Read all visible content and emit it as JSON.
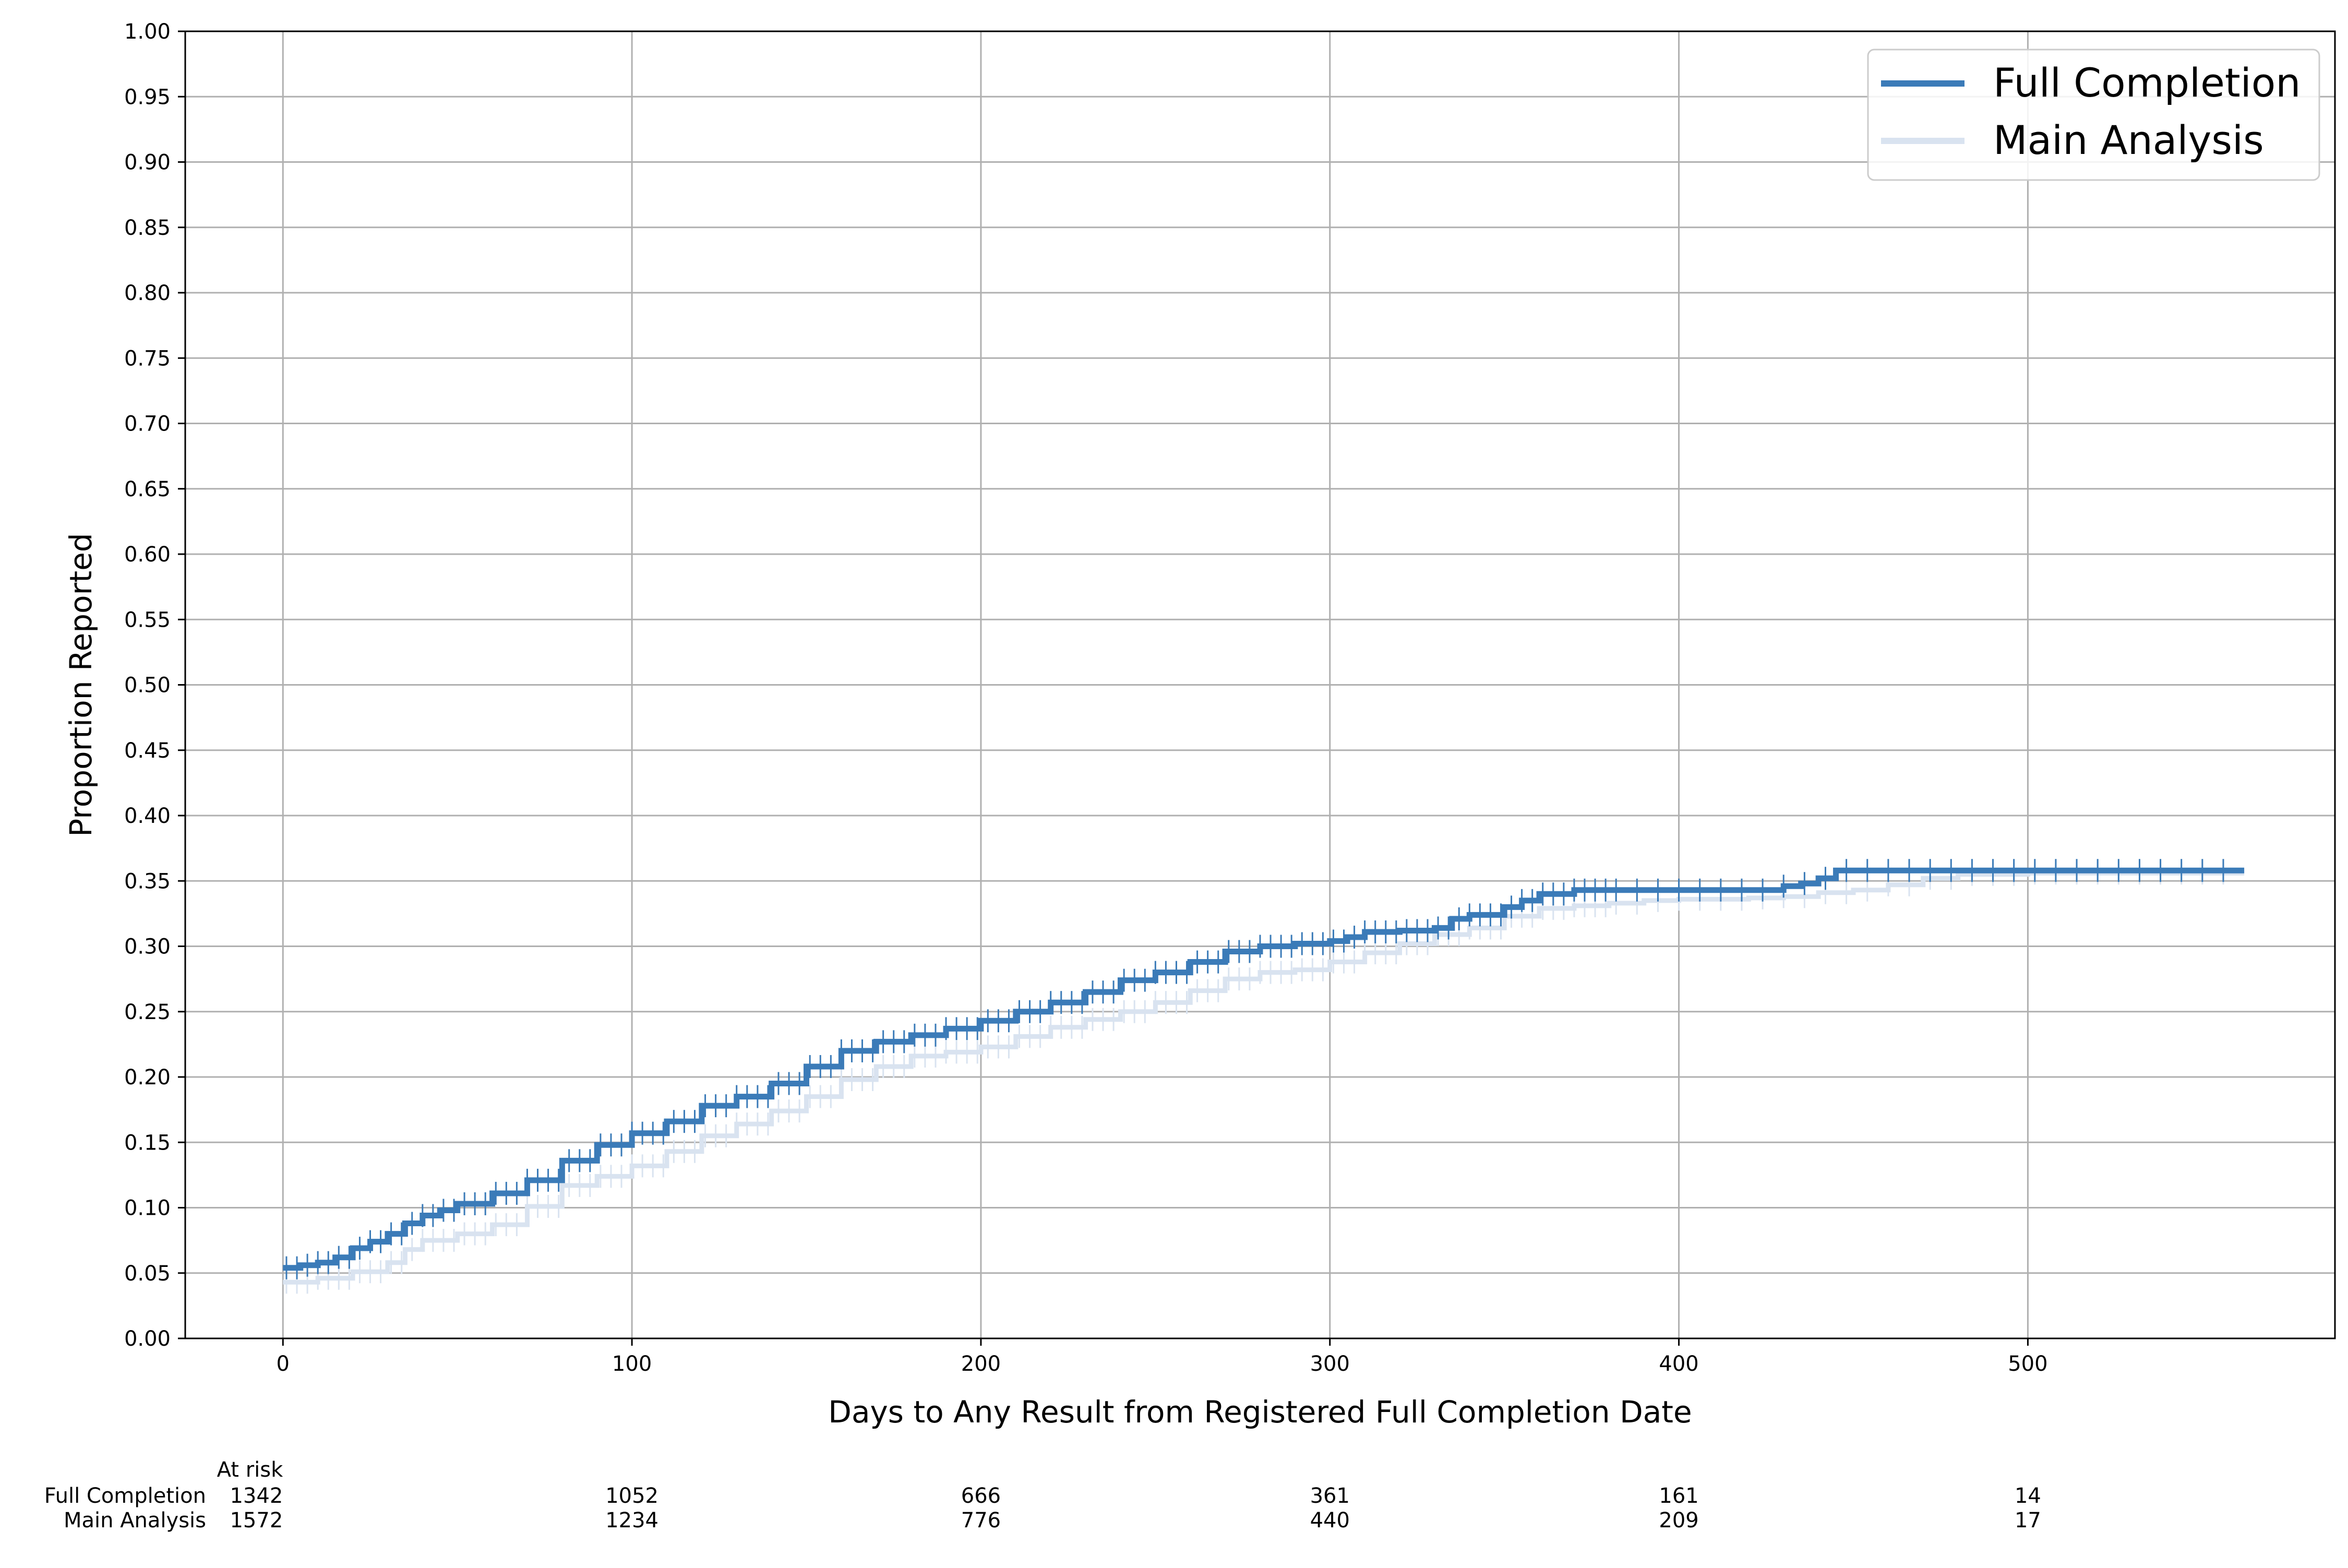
{
  "chart_data": {
    "type": "line",
    "title": "",
    "xlabel": "Days to Any Result from Registered Full Completion Date",
    "ylabel": "Proportion Reported",
    "xlim": [
      -28,
      588
    ],
    "ylim": [
      0.0,
      1.0
    ],
    "x_ticks": [
      0,
      100,
      200,
      300,
      400,
      500
    ],
    "x_tick_labels": [
      "0",
      "100",
      "200",
      "300",
      "400",
      "500"
    ],
    "y_ticks": [
      0.0,
      0.05,
      0.1,
      0.15,
      0.2,
      0.25,
      0.3,
      0.35,
      0.4,
      0.45,
      0.5,
      0.55,
      0.6,
      0.65,
      0.7,
      0.75,
      0.8,
      0.85,
      0.9,
      0.95,
      1.0
    ],
    "y_tick_labels": [
      "0.00",
      "0.05",
      "0.10",
      "0.15",
      "0.20",
      "0.25",
      "0.30",
      "0.35",
      "0.40",
      "0.45",
      "0.50",
      "0.55",
      "0.60",
      "0.65",
      "0.70",
      "0.75",
      "0.80",
      "0.85",
      "0.90",
      "0.95",
      "1.00"
    ],
    "grid": true,
    "legend_position": "top-right",
    "series": [
      {
        "name": "Main Analysis",
        "color": "#d9e3f0",
        "x": [
          0,
          10,
          20,
          30,
          35,
          40,
          50,
          60,
          70,
          80,
          90,
          100,
          110,
          120,
          130,
          140,
          150,
          160,
          170,
          180,
          190,
          200,
          210,
          220,
          230,
          240,
          250,
          260,
          270,
          280,
          290,
          300,
          310,
          320,
          330,
          340,
          350,
          360,
          370,
          380,
          390,
          400,
          410,
          420,
          430,
          440,
          450,
          460,
          470,
          480,
          500,
          520,
          540,
          562
        ],
        "y": [
          0.043,
          0.046,
          0.051,
          0.058,
          0.068,
          0.075,
          0.08,
          0.087,
          0.101,
          0.117,
          0.124,
          0.132,
          0.143,
          0.155,
          0.164,
          0.174,
          0.185,
          0.198,
          0.208,
          0.216,
          0.219,
          0.223,
          0.231,
          0.238,
          0.244,
          0.25,
          0.257,
          0.266,
          0.275,
          0.28,
          0.282,
          0.288,
          0.295,
          0.302,
          0.309,
          0.314,
          0.323,
          0.329,
          0.331,
          0.333,
          0.335,
          0.336,
          0.336,
          0.337,
          0.338,
          0.341,
          0.343,
          0.347,
          0.352,
          0.355,
          0.356,
          0.356,
          0.356,
          0.356
        ]
      },
      {
        "name": "Full Completion",
        "color": "#3b7bb8",
        "x": [
          0,
          5,
          10,
          15,
          20,
          25,
          30,
          35,
          40,
          45,
          50,
          60,
          70,
          80,
          90,
          100,
          110,
          120,
          130,
          140,
          150,
          160,
          170,
          180,
          190,
          200,
          210,
          220,
          230,
          240,
          250,
          260,
          270,
          280,
          290,
          300,
          305,
          310,
          320,
          330,
          335,
          340,
          350,
          355,
          360,
          370,
          380,
          390,
          400,
          410,
          420,
          430,
          435,
          440,
          445,
          460,
          480,
          500,
          520,
          540,
          562
        ],
        "y": [
          0.054,
          0.056,
          0.058,
          0.062,
          0.069,
          0.074,
          0.08,
          0.088,
          0.094,
          0.098,
          0.103,
          0.111,
          0.121,
          0.136,
          0.148,
          0.157,
          0.166,
          0.178,
          0.185,
          0.195,
          0.208,
          0.22,
          0.227,
          0.232,
          0.237,
          0.243,
          0.25,
          0.257,
          0.265,
          0.274,
          0.28,
          0.288,
          0.296,
          0.3,
          0.302,
          0.304,
          0.307,
          0.311,
          0.312,
          0.314,
          0.321,
          0.324,
          0.33,
          0.335,
          0.34,
          0.343,
          0.343,
          0.343,
          0.343,
          0.343,
          0.343,
          0.346,
          0.348,
          0.352,
          0.358,
          0.358,
          0.358,
          0.358,
          0.358,
          0.358,
          0.358
        ]
      }
    ],
    "legend_order": [
      "Full Completion",
      "Main Analysis"
    ],
    "at_risk": {
      "title": "At risk",
      "times": [
        0,
        100,
        200,
        300,
        400,
        500
      ],
      "rows": [
        {
          "label": "Full Completion",
          "values": [
            "1342",
            "1052",
            "666",
            "361",
            "161",
            "14"
          ]
        },
        {
          "label": "Main Analysis",
          "values": [
            "1572",
            "1234",
            "776",
            "440",
            "209",
            "17"
          ]
        }
      ]
    }
  }
}
